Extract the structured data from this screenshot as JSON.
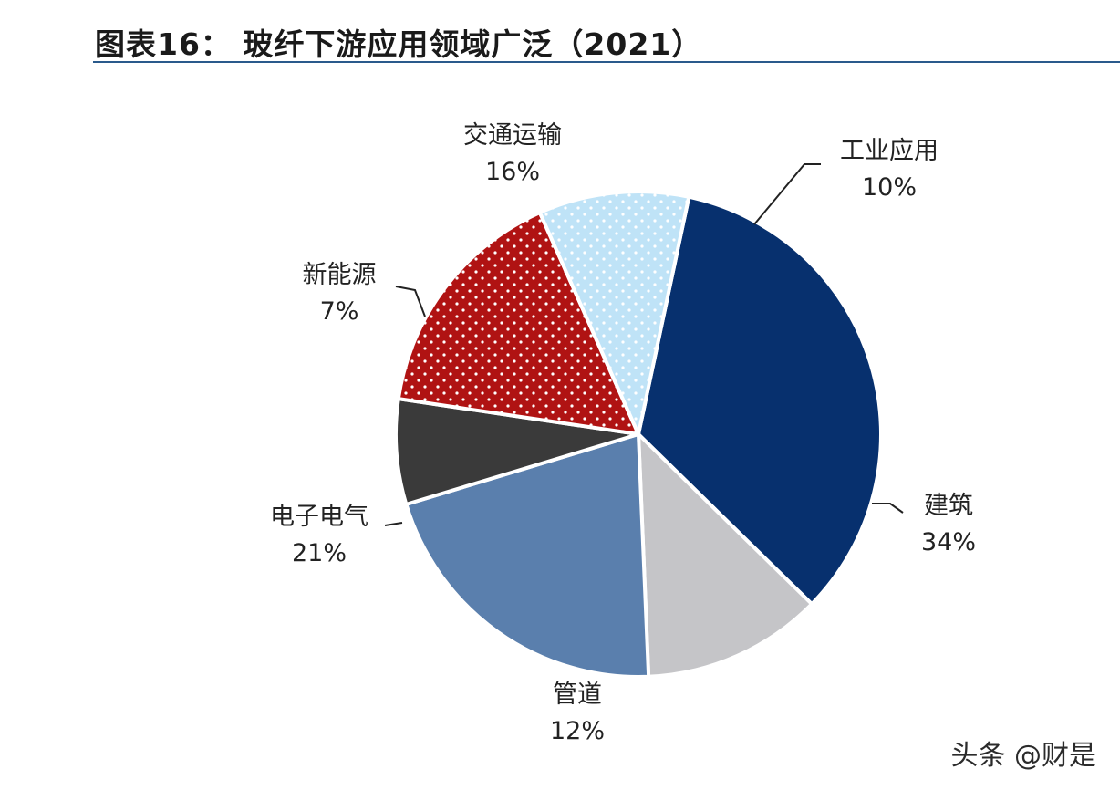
{
  "title": "图表16： 玻纤下游应用领域广泛（2021）",
  "watermark": "头条 @财是",
  "chart_data": {
    "type": "pie",
    "title": "图表16： 玻纤下游应用领域广泛（2021）",
    "slices": [
      {
        "label": "建筑",
        "value": 34,
        "display": "34%",
        "color": "#07306e",
        "pattern": "none"
      },
      {
        "label": "管道",
        "value": 12,
        "display": "12%",
        "color": "#c5c5c8",
        "pattern": "none"
      },
      {
        "label": "电子电气",
        "value": 21,
        "display": "21%",
        "color": "#5a7fad",
        "pattern": "none"
      },
      {
        "label": "新能源",
        "value": 7,
        "display": "7%",
        "color": "#3a3a3a",
        "pattern": "none"
      },
      {
        "label": "交通运输",
        "value": 16,
        "display": "16%",
        "color": "#b01313",
        "pattern": "white-dots"
      },
      {
        "label": "工业应用",
        "value": 10,
        "display": "10%",
        "color": "#bfe3f7",
        "pattern": "white-dots"
      }
    ],
    "legend": "none"
  }
}
